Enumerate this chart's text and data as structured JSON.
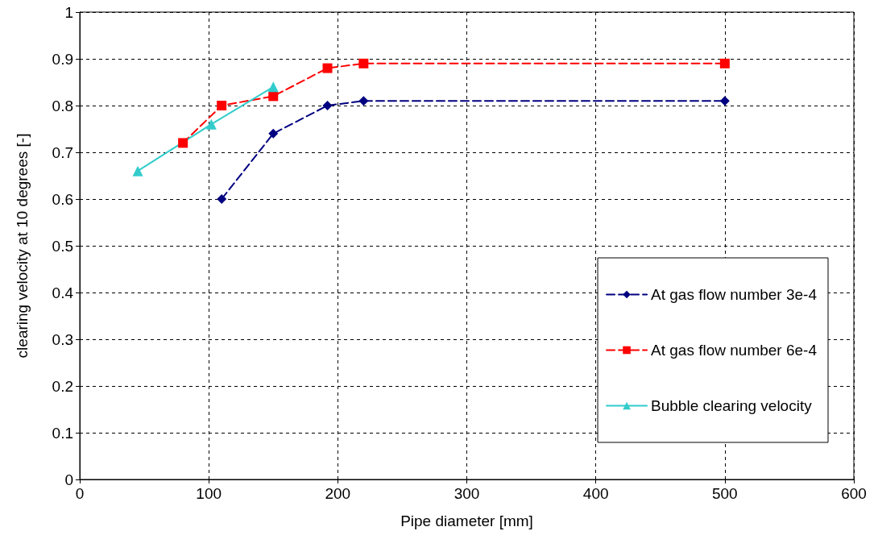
{
  "chart_data": {
    "type": "line",
    "xlabel": "Pipe diameter [mm]",
    "ylabel": "clearing velocity at 10 degrees [-]",
    "xlim": [
      0,
      600
    ],
    "xticks": [
      0,
      100,
      200,
      300,
      400,
      500,
      600
    ],
    "ylim": [
      0,
      1
    ],
    "yticks": [
      0,
      0.1,
      0.2,
      0.3,
      0.4,
      0.5,
      0.6,
      0.7,
      0.8,
      0.9,
      1
    ],
    "grid": true,
    "legend": "bottom right",
    "series": [
      {
        "name": "At gas flow number 3e-4",
        "color": "#000080",
        "marker": "diamond",
        "line_style": "dashed",
        "x": [
          110,
          150,
          192,
          220,
          500
        ],
        "values": [
          0.6,
          0.74,
          0.8,
          0.81,
          0.81
        ]
      },
      {
        "name": "At gas flow number 6e-4",
        "color": "#ff0000",
        "marker": "square",
        "line_style": "dashed",
        "x": [
          80,
          110,
          150,
          192,
          220,
          500
        ],
        "values": [
          0.72,
          0.8,
          0.82,
          0.88,
          0.89,
          0.89
        ]
      },
      {
        "name": "Bubble clearing velocity",
        "color": "#33cccc",
        "marker": "triangle",
        "line_style": "solid",
        "x": [
          45,
          102,
          150
        ],
        "values": [
          0.66,
          0.76,
          0.84
        ]
      }
    ]
  }
}
